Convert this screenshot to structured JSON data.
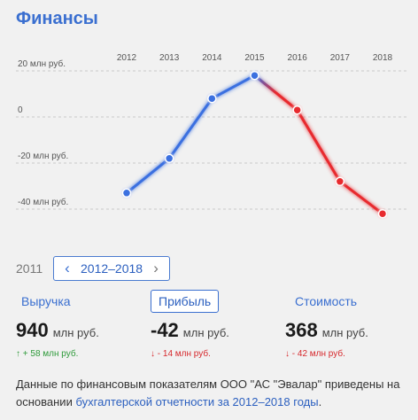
{
  "header": {
    "title": "Финансы"
  },
  "chart_data": {
    "type": "line",
    "x": [
      "2012",
      "2013",
      "2014",
      "2015",
      "2016",
      "2017",
      "2018"
    ],
    "series": [
      {
        "values": [
          -33,
          -18,
          8,
          18,
          3,
          -28,
          -42
        ]
      }
    ],
    "y_ticks": [
      {
        "value": 20,
        "label": "20 млн руб."
      },
      {
        "value": 0,
        "label": "0"
      },
      {
        "value": -20,
        "label": "-20 млн руб."
      },
      {
        "value": -40,
        "label": "-40 млн руб."
      }
    ],
    "ylim": [
      -50,
      24
    ],
    "colors": {
      "rising": "#3b6fe0",
      "falling": "#e8292e",
      "grid": "#c9c9c9"
    },
    "grid": true
  },
  "range": {
    "prev_year": "2011",
    "label": "2012–2018"
  },
  "tabs": [
    {
      "label": "Выручка"
    },
    {
      "label": "Прибыль",
      "active": true
    },
    {
      "label": "Стоимость"
    }
  ],
  "metrics": [
    {
      "value": "940",
      "unit": "млн руб.",
      "delta": "↑ + 58 млн руб."
    },
    {
      "value": "-42",
      "unit": "млн руб.",
      "delta": "↓ - 14 млн руб."
    },
    {
      "value": "368",
      "unit": "млн руб.",
      "delta": "↓ - 42 млн руб."
    }
  ],
  "footnote": {
    "prefix": "Данные по финансовым показателям ООО \"АС \"Эвалар\" приведены на основании ",
    "link": "бухгалтерской отчетности за 2012–2018 годы",
    "suffix": "."
  }
}
